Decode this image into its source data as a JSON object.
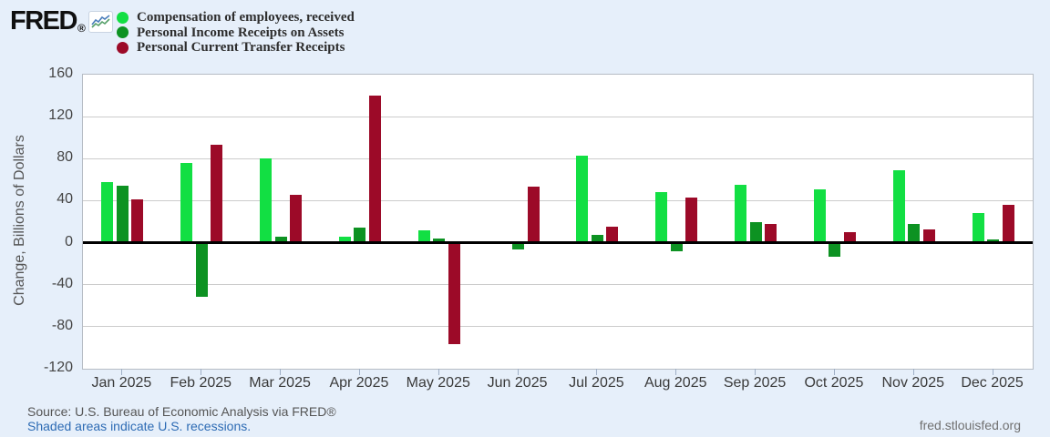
{
  "header": {
    "logo_text": "FRED",
    "logo_registered": "®"
  },
  "legend": {
    "items": [
      {
        "label": "Compensation of employees, received",
        "color": "#12df43"
      },
      {
        "label": "Personal Income Receipts on Assets",
        "color": "#0d9222"
      },
      {
        "label": "Personal Current Transfer Receipts",
        "color": "#9c0a28"
      }
    ]
  },
  "chart_data": {
    "type": "bar",
    "title": "",
    "xlabel": "",
    "ylabel": "Change, Billions of Dollars",
    "ylim": [
      -120,
      160
    ],
    "yticks": [
      160,
      120,
      80,
      40,
      0,
      -40,
      -80,
      -120
    ],
    "grid": true,
    "legend_position": "top-left",
    "categories": [
      "Jan 2025",
      "Feb 2025",
      "Mar 2025",
      "Apr 2025",
      "May 2025",
      "Jun 2025",
      "Jul 2025",
      "Aug 2025",
      "Sep 2025",
      "Oct 2025",
      "Nov 2025",
      "Dec 2025"
    ],
    "series": [
      {
        "name": "Compensation of employees, received",
        "color": "#12df43",
        "values": [
          58,
          76,
          80,
          6,
          12,
          0,
          83,
          48,
          55,
          51,
          69,
          28
        ]
      },
      {
        "name": "Personal Income Receipts on Assets",
        "color": "#0d9222",
        "values": [
          54,
          -50,
          6,
          14,
          4,
          -5,
          7,
          -7,
          20,
          -12,
          18,
          3
        ]
      },
      {
        "name": "Personal Current Transfer Receipts",
        "color": "#9c0a28",
        "values": [
          41,
          93,
          46,
          140,
          -95,
          53,
          15,
          43,
          18,
          10,
          13,
          36
        ]
      }
    ]
  },
  "footer": {
    "source_line": "Source: U.S. Bureau of Economic Analysis via FRED®",
    "recession_note": "Shaded areas indicate U.S. recessions.",
    "site_url": "fred.stlouisfed.org"
  },
  "colors": {
    "page_background": "#e6effa",
    "plot_background": "#ffffff",
    "gridline": "#cccccc",
    "zero_line": "#000000",
    "tick_text": "#444444",
    "link": "#2d6bb4"
  }
}
